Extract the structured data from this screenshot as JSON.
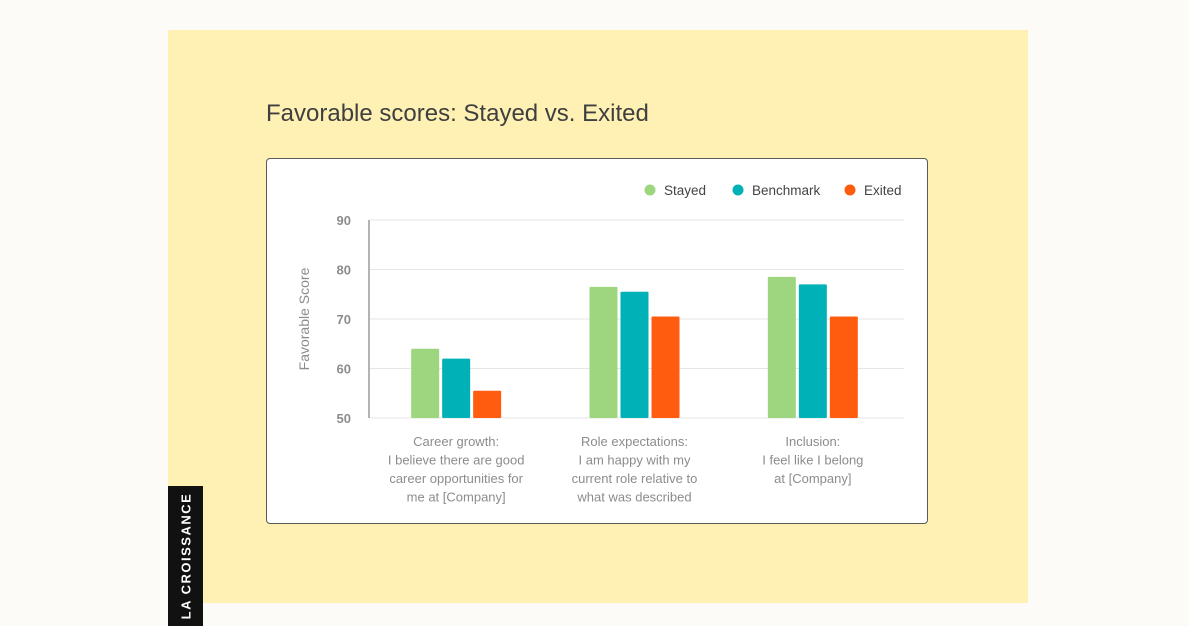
{
  "title": "Favorable scores: Stayed vs. Exited",
  "brand": "LA CROISSANCE",
  "colors": {
    "panel": "#fff0b3",
    "stayed": "#9dd67f",
    "benchmark": "#00b2b8",
    "exited": "#ff5c0f"
  },
  "chart_data": {
    "type": "bar",
    "categories": [
      [
        "Career growth:",
        "I believe there are good",
        "career opportunities for",
        "me at [Company]"
      ],
      [
        "Role expectations:",
        "I am happy with my",
        "current role relative to",
        "what was described"
      ],
      [
        "Inclusion:",
        "I feel like I belong",
        "at [Company]"
      ]
    ],
    "series": [
      {
        "name": "Stayed",
        "color": "#9dd67f",
        "values": [
          64,
          76.5,
          78.5
        ]
      },
      {
        "name": "Benchmark",
        "color": "#00b2b8",
        "values": [
          62,
          75.5,
          77
        ]
      },
      {
        "name": "Exited",
        "color": "#ff5c0f",
        "values": [
          55.5,
          70.5,
          70.5
        ]
      }
    ],
    "ylabel": "Favorable Score",
    "xlabel": "",
    "ylim": [
      50,
      90
    ],
    "yticks": [
      50,
      60,
      70,
      80,
      90
    ],
    "grid": true,
    "legend": "top-right"
  }
}
